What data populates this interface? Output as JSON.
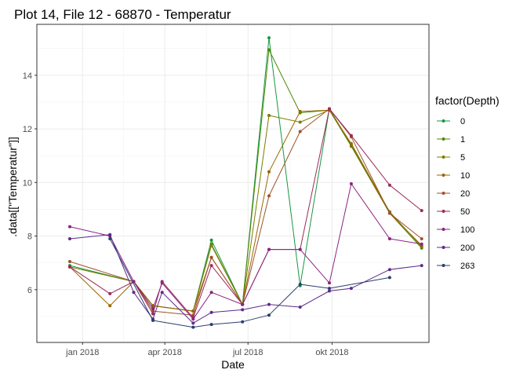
{
  "chart_data": {
    "type": "line",
    "title": "Plot 14, File 12 - 68870  -  Temperatur",
    "xlabel": "Date",
    "ylabel": ".data[[\"Temperatur\"]]",
    "x_type": "date",
    "xlim": [
      "2017-11-12",
      "2019-01-15"
    ],
    "ylim": [
      4.03,
      15.9
    ],
    "x_ticks": [
      {
        "date": "2018-01-01",
        "label": "jan 2018"
      },
      {
        "date": "2018-04-01",
        "label": "apr 2018"
      },
      {
        "date": "2018-07-01",
        "label": "jul 2018"
      },
      {
        "date": "2018-10-01",
        "label": "okt 2018"
      }
    ],
    "y_ticks": [
      6,
      8,
      10,
      12,
      14
    ],
    "grid": true,
    "legend": {
      "title": "factor(Depth)",
      "position": "right"
    },
    "dates": [
      "2017-12-18",
      "2018-01-31",
      "2018-02-26",
      "2018-03-19",
      "2018-03-29",
      "2018-05-02",
      "2018-05-22",
      "2018-06-25",
      "2018-07-24",
      "2018-08-27",
      "2018-09-28",
      "2018-10-22",
      "2018-12-03",
      "2019-01-07"
    ],
    "series": [
      {
        "name": "0",
        "color": "#1a9641",
        "values": [
          6.9,
          null,
          6.3,
          5.4,
          null,
          5.2,
          7.85,
          5.45,
          15.4,
          6.15,
          12.75,
          11.4,
          8.9,
          7.6
        ]
      },
      {
        "name": "1",
        "color": "#4d8a05",
        "values": [
          6.85,
          null,
          6.3,
          5.4,
          null,
          5.2,
          7.7,
          5.45,
          14.95,
          12.6,
          12.7,
          11.35,
          8.85,
          7.55
        ]
      },
      {
        "name": "5",
        "color": "#7d7d00",
        "values": [
          6.85,
          null,
          6.3,
          5.4,
          null,
          5.2,
          7.65,
          5.45,
          12.5,
          12.25,
          12.7,
          11.45,
          8.9,
          7.6
        ]
      },
      {
        "name": "10",
        "color": "#996600",
        "values": [
          6.85,
          5.4,
          6.3,
          5.4,
          null,
          5.2,
          7.2,
          5.45,
          10.4,
          12.65,
          12.7,
          11.4,
          8.85,
          7.65
        ]
      },
      {
        "name": "20",
        "color": "#a0522d",
        "values": [
          7.05,
          null,
          6.3,
          5.2,
          null,
          5.05,
          7.2,
          5.45,
          9.5,
          11.9,
          12.75,
          11.7,
          8.85,
          7.9
        ]
      },
      {
        "name": "50",
        "color": "#9c2a5a",
        "values": [
          6.85,
          5.85,
          6.3,
          5.1,
          6.3,
          4.95,
          6.9,
          5.45,
          7.5,
          7.5,
          12.75,
          11.75,
          9.9,
          8.95
        ]
      },
      {
        "name": "100",
        "color": "#8b2281",
        "values": [
          8.35,
          8.0,
          6.3,
          5.3,
          6.25,
          4.9,
          5.9,
          5.45,
          7.5,
          7.5,
          6.25,
          9.95,
          7.9,
          7.7
        ]
      },
      {
        "name": "200",
        "color": "#5e2a8a",
        "values": [
          7.9,
          8.05,
          5.9,
          4.9,
          5.9,
          4.75,
          5.15,
          5.25,
          5.45,
          5.35,
          5.95,
          6.05,
          6.75,
          6.9
        ]
      },
      {
        "name": "263",
        "color": "#2c3e6e",
        "values": [
          null,
          7.9,
          null,
          4.85,
          null,
          4.6,
          4.7,
          4.8,
          5.05,
          6.2,
          6.05,
          null,
          6.45,
          null
        ]
      }
    ]
  }
}
